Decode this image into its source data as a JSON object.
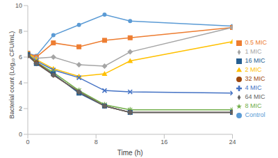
{
  "chart_data": {
    "type": "line",
    "x_label": "Time (h)",
    "y_label": "Bacterial count (Log₁₀ CFU/mL)",
    "x": [
      0,
      1,
      3,
      6,
      9,
      12,
      24
    ],
    "xlim": [
      0,
      24
    ],
    "xticks": [
      0,
      8,
      16,
      24
    ],
    "ylim": [
      0,
      10
    ],
    "yticks": [
      0,
      2,
      4,
      6,
      8,
      10
    ],
    "grid": false,
    "legend": "right",
    "series": [
      {
        "name": "Control",
        "color": "#5b9bd5",
        "marker": "circle",
        "values": [
          6.3,
          6.1,
          7.7,
          8.5,
          9.3,
          8.8,
          8.4
        ]
      },
      {
        "name": "0.5 MIC",
        "color": "#ed7d31",
        "marker": "square",
        "values": [
          6.3,
          6.0,
          7.1,
          6.8,
          7.3,
          7.5,
          8.3
        ]
      },
      {
        "name": "1 MIC",
        "color": "#a5a5a5",
        "marker": "diamond",
        "values": [
          6.2,
          5.9,
          6.0,
          5.4,
          5.3,
          6.4,
          8.3
        ]
      },
      {
        "name": "2 MIC",
        "color": "#ffc000",
        "marker": "triangle",
        "values": [
          6.3,
          5.8,
          5.1,
          4.5,
          4.7,
          5.7,
          7.2
        ]
      },
      {
        "name": "4 MIC",
        "color": "#4472c4",
        "marker": "x",
        "values": [
          6.2,
          5.7,
          5.0,
          4.4,
          3.4,
          3.3,
          3.2
        ]
      },
      {
        "name": "8 MIC",
        "color": "#70ad47",
        "marker": "star",
        "values": [
          6.2,
          5.6,
          4.8,
          3.4,
          2.3,
          1.9,
          1.9
        ]
      },
      {
        "name": "16 MIC",
        "color": "#255e91",
        "marker": "square",
        "values": [
          6.2,
          5.5,
          4.7,
          3.2,
          2.2,
          1.7,
          1.7
        ]
      },
      {
        "name": "32 MIC",
        "color": "#9e480e",
        "marker": "circle",
        "values": [
          6.1,
          5.6,
          4.6,
          3.3,
          2.2,
          1.7,
          1.7
        ]
      },
      {
        "name": "64 MIC",
        "color": "#636363",
        "marker": "diamond",
        "values": [
          6.1,
          5.5,
          4.6,
          3.3,
          2.2,
          1.7,
          1.7
        ]
      }
    ]
  }
}
